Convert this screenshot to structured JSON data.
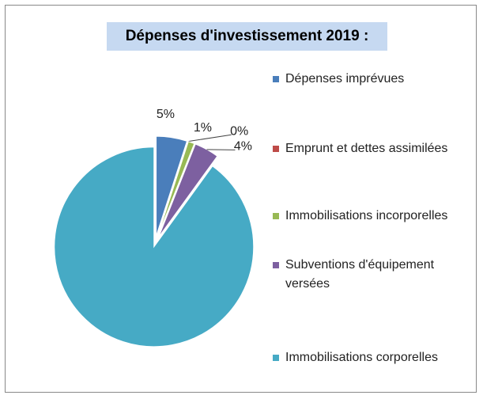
{
  "chart_data": {
    "type": "pie",
    "title": "Dépenses d'investissement 2019 :",
    "categories": [
      "Dépenses imprévues",
      "Emprunt et dettes assimilées",
      "Immobilisations incorporelles",
      "Subventions d'équipement versées",
      "Immobilisations corporelles"
    ],
    "values": [
      5,
      0,
      1,
      4,
      90
    ],
    "value_labels": [
      "5%",
      "0%",
      "1%",
      "4%",
      null
    ],
    "colors": [
      "#4a7ebb",
      "#be4b48",
      "#98b954",
      "#7d60a0",
      "#46aac5"
    ],
    "legend": "right"
  }
}
